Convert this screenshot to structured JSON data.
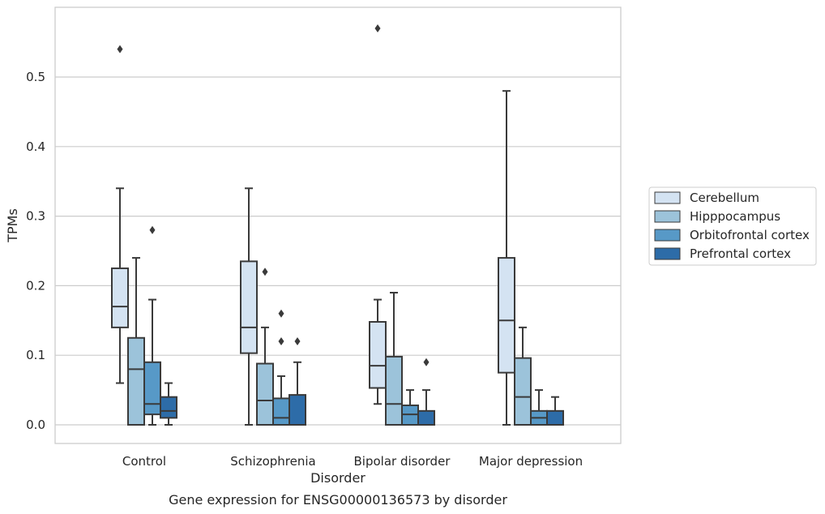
{
  "chart_data": {
    "type": "box",
    "caption": "Gene expression for ENSG00000136573 by disorder",
    "xlabel": "Disorder",
    "ylabel": "TPMs",
    "ylim": [
      -0.028,
      0.598
    ],
    "yticks": [
      "0.0",
      "0.1",
      "0.2",
      "0.3",
      "0.4",
      "0.5"
    ],
    "grid": true,
    "legend_position": "right-outside",
    "categories": [
      "Control",
      "Schizophrenia",
      "Bipolar disorder",
      "Major depression"
    ],
    "series": [
      {
        "name": "Cerebellum",
        "color": "#d4e3f2",
        "boxes": [
          {
            "whislo": 0.06,
            "q1": 0.14,
            "med": 0.17,
            "q3": 0.225,
            "whishi": 0.34,
            "fliers": [
              0.54
            ]
          },
          {
            "whislo": 0.0,
            "q1": 0.103,
            "med": 0.14,
            "q3": 0.235,
            "whishi": 0.34,
            "fliers": []
          },
          {
            "whislo": 0.03,
            "q1": 0.053,
            "med": 0.085,
            "q3": 0.148,
            "whishi": 0.18,
            "fliers": [
              0.57
            ]
          },
          {
            "whislo": 0.0,
            "q1": 0.075,
            "med": 0.15,
            "q3": 0.24,
            "whishi": 0.48,
            "fliers": []
          }
        ]
      },
      {
        "name": "Hipppocampus",
        "color": "#9cc3da",
        "boxes": [
          {
            "whislo": 0.0,
            "q1": 0.0,
            "med": 0.08,
            "q3": 0.125,
            "whishi": 0.24,
            "fliers": []
          },
          {
            "whislo": 0.0,
            "q1": 0.0,
            "med": 0.035,
            "q3": 0.088,
            "whishi": 0.14,
            "fliers": [
              0.22
            ]
          },
          {
            "whislo": 0.0,
            "q1": 0.0,
            "med": 0.03,
            "q3": 0.098,
            "whishi": 0.19,
            "fliers": []
          },
          {
            "whislo": 0.0,
            "q1": 0.0,
            "med": 0.04,
            "q3": 0.096,
            "whishi": 0.14,
            "fliers": []
          }
        ]
      },
      {
        "name": "Orbitofrontal cortex",
        "color": "#5799c7",
        "boxes": [
          {
            "whislo": 0.0,
            "q1": 0.015,
            "med": 0.03,
            "q3": 0.09,
            "whishi": 0.18,
            "fliers": [
              0.28
            ]
          },
          {
            "whislo": 0.0,
            "q1": 0.0,
            "med": 0.01,
            "q3": 0.038,
            "whishi": 0.07,
            "fliers": [
              0.12,
              0.16
            ]
          },
          {
            "whislo": 0.0,
            "q1": 0.0,
            "med": 0.015,
            "q3": 0.028,
            "whishi": 0.05,
            "fliers": []
          },
          {
            "whislo": 0.0,
            "q1": 0.0,
            "med": 0.01,
            "q3": 0.02,
            "whishi": 0.05,
            "fliers": []
          }
        ]
      },
      {
        "name": "Prefrontal cortex",
        "color": "#2d6ca8",
        "boxes": [
          {
            "whislo": 0.0,
            "q1": 0.01,
            "med": 0.02,
            "q3": 0.04,
            "whishi": 0.06,
            "fliers": []
          },
          {
            "whislo": 0.0,
            "q1": 0.0,
            "med": 0.0,
            "q3": 0.043,
            "whishi": 0.09,
            "fliers": [
              0.12
            ]
          },
          {
            "whislo": 0.0,
            "q1": 0.0,
            "med": 0.0,
            "q3": 0.02,
            "whishi": 0.05,
            "fliers": [
              0.09
            ]
          },
          {
            "whislo": 0.0,
            "q1": 0.0,
            "med": 0.0,
            "q3": 0.02,
            "whishi": 0.04,
            "fliers": []
          }
        ]
      }
    ]
  }
}
